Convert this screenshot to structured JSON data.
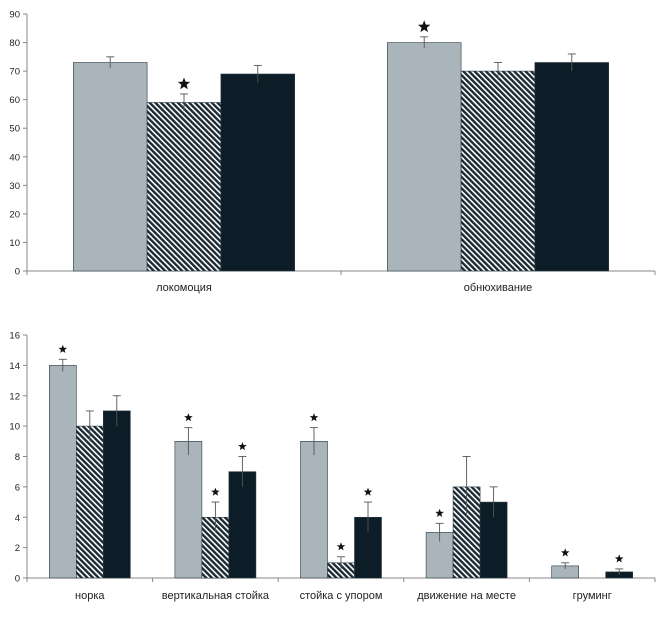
{
  "colors": {
    "series_1": "#a9b5bb",
    "series_2": "#1b2a33",
    "series_3": "#0c1d27",
    "axis": "#888888",
    "star": "#111111"
  },
  "chart_data": [
    {
      "type": "bar",
      "title": "",
      "xlabel": "",
      "ylabel": "",
      "categories": [
        "локомоция",
        "обнюхивание"
      ],
      "series": [
        {
          "fill": "solid-light",
          "values": [
            73,
            80
          ],
          "errors": [
            2,
            2
          ],
          "stars": [
            false,
            true
          ]
        },
        {
          "fill": "hatched",
          "values": [
            59,
            70
          ],
          "errors": [
            3,
            3
          ],
          "stars": [
            true,
            false
          ]
        },
        {
          "fill": "solid-dark",
          "values": [
            69,
            73
          ],
          "errors": [
            3,
            3
          ],
          "stars": [
            false,
            false
          ]
        }
      ],
      "ylim": [
        0,
        90
      ],
      "yticks": [
        0,
        10,
        20,
        30,
        40,
        50,
        60,
        70,
        80,
        90
      ],
      "ytick_labels": [
        "0",
        "10",
        "20",
        "30",
        "40",
        "50",
        "60",
        "70",
        "80",
        "90"
      ],
      "grid": false,
      "legend": "none"
    },
    {
      "type": "bar",
      "title": "",
      "xlabel": "",
      "ylabel": "",
      "categories": [
        "норка",
        "вертикальная стойка",
        "стойка с упором",
        "движение на месте",
        "груминг"
      ],
      "series": [
        {
          "fill": "solid-light",
          "values": [
            14,
            9,
            9,
            3,
            0.8
          ],
          "errors": [
            0.4,
            0.9,
            0.9,
            0.6,
            0.2
          ],
          "stars": [
            true,
            true,
            true,
            true,
            true
          ]
        },
        {
          "fill": "hatched",
          "values": [
            10,
            4,
            1,
            6,
            0
          ],
          "errors": [
            1,
            1,
            0.4,
            2,
            0
          ],
          "stars": [
            false,
            true,
            true,
            false,
            false
          ]
        },
        {
          "fill": "solid-dark",
          "values": [
            11,
            7,
            4,
            5,
            0.4
          ],
          "errors": [
            1,
            1,
            1,
            1,
            0.2
          ],
          "stars": [
            false,
            true,
            true,
            false,
            true
          ]
        }
      ],
      "ylim": [
        0,
        16
      ],
      "yticks": [
        0,
        2,
        4,
        6,
        8,
        10,
        12,
        14,
        16
      ],
      "ytick_labels": [
        "0",
        "2",
        "4",
        "6",
        "8",
        "10",
        "12",
        "14",
        "16"
      ],
      "grid": false,
      "legend": "none"
    }
  ]
}
